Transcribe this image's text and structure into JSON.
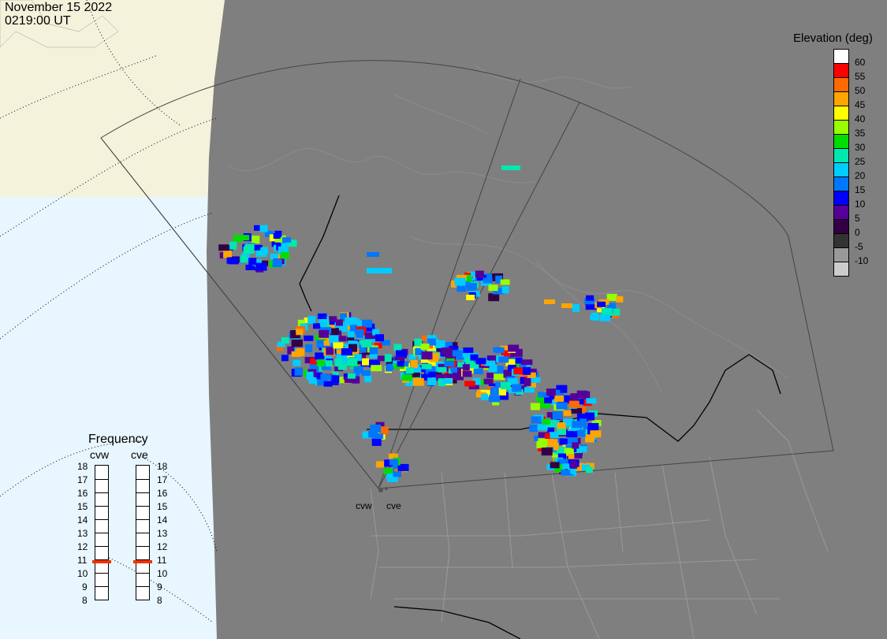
{
  "header": {
    "date": "November 15 2022",
    "time": "0219:00 UT"
  },
  "legend": {
    "title": "Elevation (deg)",
    "levels": [
      {
        "label": "60",
        "color": "#ffffff"
      },
      {
        "label": "55",
        "color": "#ff0000"
      },
      {
        "label": "50",
        "color": "#ff6a00"
      },
      {
        "label": "45",
        "color": "#ffa500"
      },
      {
        "label": "40",
        "color": "#ffff00"
      },
      {
        "label": "35",
        "color": "#99ff00"
      },
      {
        "label": "30",
        "color": "#00dd00"
      },
      {
        "label": "25",
        "color": "#00e8b0"
      },
      {
        "label": "20",
        "color": "#00ccff"
      },
      {
        "label": "15",
        "color": "#0077ff"
      },
      {
        "label": "10",
        "color": "#0000ff"
      },
      {
        "label": "5",
        "color": "#550099"
      },
      {
        "label": "0",
        "color": "#330044"
      },
      {
        "label": "-5",
        "color": "#333333"
      },
      {
        "label": "-10",
        "color": "#999999"
      },
      {
        "label": "",
        "color": "#cccccc"
      }
    ]
  },
  "frequency": {
    "title": "Frequency",
    "scale": [
      "18",
      "17",
      "16",
      "15",
      "14",
      "13",
      "12",
      "11",
      "10",
      "9",
      "8"
    ],
    "marker_color": "#ee3300",
    "radars": [
      {
        "name": "cvw",
        "value": 10.8
      },
      {
        "name": "cve",
        "value": 10.8
      }
    ]
  },
  "sites": [
    {
      "label": "cvw"
    },
    {
      "label": "cve"
    }
  ]
}
